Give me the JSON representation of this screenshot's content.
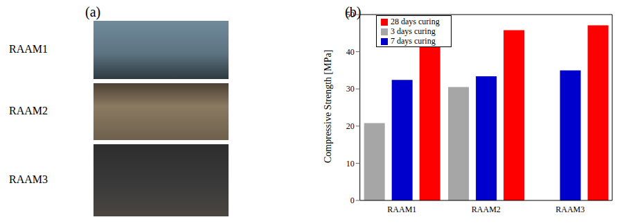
{
  "panel_labels": [
    "(a)",
    "(b)"
  ],
  "photo_rows": [
    "RAAM1",
    "RAAM2",
    "RAAM3"
  ],
  "chart_data": {
    "type": "bar",
    "categories": [
      "RAAM1",
      "RAAM2",
      "RAAM3"
    ],
    "y_label": "Compressive Strength [MPa]",
    "ylim": [
      0,
      50
    ],
    "yticks": [
      0,
      10,
      20,
      30,
      40,
      50
    ],
    "grid": false,
    "legend": "upper left",
    "series": [
      {
        "name": "3 days curing",
        "color": "#a6a6a6",
        "values": [
          20.8,
          30.5,
          null
        ]
      },
      {
        "name": "7 days curing",
        "color": "#0000cc",
        "values": [
          32.4,
          33.4,
          35.0
        ]
      },
      {
        "name": "28 days curing",
        "color": "#ff0000",
        "values": [
          42.6,
          45.8,
          47.1
        ]
      }
    ]
  }
}
